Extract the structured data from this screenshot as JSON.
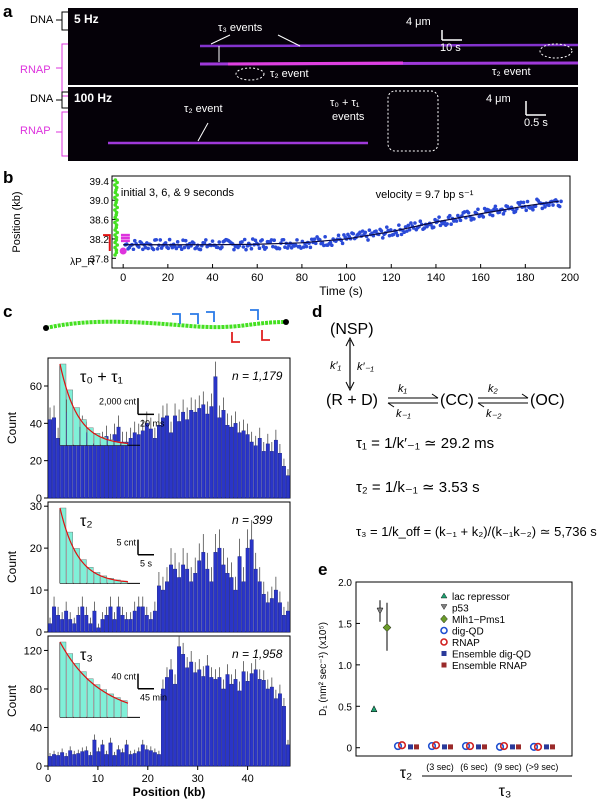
{
  "panels": {
    "a": "a",
    "b": "b",
    "c": "c",
    "d": "d",
    "e": "e"
  },
  "kymo1": {
    "side_top": "DNA",
    "side_bottom": "RNAP",
    "rate": "5 Hz",
    "tau3": "τ₃ events",
    "tau2a": "τ₂ event",
    "tau2b": "τ₂ event",
    "scale_x": "10 s",
    "scale_y": "4 μm"
  },
  "kymo2": {
    "side_top": "DNA",
    "side_bottom": "RNAP",
    "rate": "100 Hz",
    "tau2": "τ₂ event",
    "tau01": "τ₀ + τ₁",
    "tau01b": "events",
    "scale_x": "0.5 s",
    "scale_y": "4 μm"
  },
  "chart_data": [
    {
      "type": "scatter",
      "title": "",
      "xlabel": "Time (s)",
      "ylabel": "Position (kb)",
      "xlim": [
        -5,
        200
      ],
      "ylim": [
        37.6,
        39.5
      ],
      "xticks": [
        0,
        20,
        40,
        60,
        80,
        100,
        120,
        140,
        160,
        180,
        200
      ],
      "yticks": [
        37.8,
        38.2,
        38.6,
        39.0,
        39.4
      ],
      "annotations": [
        "initial 3, 6, & 9 seconds",
        "velocity = 9.7 bp s⁻¹",
        "λP_R"
      ],
      "trend": {
        "x": [
          0,
          40,
          60,
          80,
          100,
          120,
          140,
          160,
          180,
          195
        ],
        "y": [
          38.08,
          38.08,
          38.09,
          38.12,
          38.2,
          38.35,
          38.55,
          38.72,
          38.88,
          38.98
        ]
      }
    },
    {
      "type": "bar",
      "ylabel": "Count",
      "legend_label": "τ₀ + τ₁",
      "n_label": "n = 1,179",
      "ylim": [
        0,
        75
      ],
      "yticks": [
        0,
        20,
        40,
        60
      ],
      "inset": {
        "scale_y": "2,000 cnt",
        "scale_x": "20 ms"
      },
      "values": [
        42,
        43,
        32,
        58,
        46,
        42,
        28,
        38,
        38,
        35,
        30,
        29,
        28,
        30,
        33,
        29,
        34,
        38,
        30,
        30,
        32,
        35,
        34,
        36,
        40,
        37,
        32,
        39,
        43,
        44,
        35,
        44,
        41,
        46,
        42,
        47,
        46,
        48,
        50,
        45,
        49,
        65,
        43,
        47,
        39,
        38,
        40,
        35,
        36,
        34,
        30,
        28,
        32,
        25,
        29,
        25,
        31,
        24,
        17,
        12
      ]
    },
    {
      "type": "bar",
      "ylabel": "Count",
      "legend_label": "τ₂",
      "n_label": "n = 399",
      "ylim": [
        0,
        31
      ],
      "yticks": [
        0,
        10,
        20,
        30
      ],
      "inset": {
        "scale_y": "5 cnt",
        "scale_x": "5 s"
      },
      "values": [
        2,
        6,
        4,
        3,
        5,
        3,
        2,
        4,
        6,
        4,
        2,
        5,
        1,
        3,
        4,
        6,
        3,
        6,
        4,
        3,
        3,
        5,
        6,
        6,
        4,
        3,
        5,
        11,
        10,
        12,
        16,
        15,
        13,
        16,
        15,
        12,
        14,
        17,
        19,
        15,
        12,
        19,
        20,
        16,
        14,
        13,
        10,
        18,
        12,
        20,
        22,
        15,
        12,
        9,
        7,
        8,
        10,
        7,
        4,
        5
      ]
    },
    {
      "type": "bar",
      "ylabel": "Count",
      "xlabel": "Position (kb)",
      "legend_label": "τ₃",
      "n_label": "n = 1,958",
      "ylim": [
        0,
        135
      ],
      "yticks": [
        0,
        40,
        80,
        120
      ],
      "xticks": [
        0,
        10,
        20,
        30,
        40
      ],
      "inset": {
        "scale_y": "40 cnt",
        "scale_x": "45 min"
      },
      "values": [
        10,
        12,
        11,
        14,
        10,
        16,
        12,
        13,
        15,
        16,
        11,
        27,
        15,
        22,
        12,
        24,
        11,
        17,
        14,
        22,
        12,
        13,
        15,
        22,
        17,
        16,
        14,
        12,
        80,
        92,
        100,
        85,
        124,
        116,
        102,
        108,
        97,
        100,
        93,
        104,
        92,
        90,
        92,
        80,
        95,
        85,
        90,
        78,
        98,
        88,
        96,
        100,
        90,
        89,
        80,
        82,
        70,
        75,
        62,
        22
      ]
    },
    {
      "type": "scatter",
      "ylabel": "D₁ (nm² sec⁻¹) (x10⁵)",
      "ylim": [
        -0.1,
        2.0
      ],
      "yticks": [
        0,
        0.5,
        1.0,
        1.5,
        2.0
      ],
      "categories": [
        "lac repressor",
        "p53",
        "Mlh1−Pms1",
        "τ₂",
        "(3 sec)",
        "(6 sec)",
        "(9 sec)",
        "(>9 sec)"
      ],
      "group_label": "τ₃",
      "legend": [
        "lac repressor",
        "p53",
        "Mlh1−Pms1",
        "dig-QD",
        "RNAP",
        "Ensemble dig-QD",
        "Ensemble RNAP"
      ],
      "series": [
        {
          "name": "lac repressor",
          "values": [
            0.47
          ]
        },
        {
          "name": "p53",
          "values": [
            1.65
          ]
        },
        {
          "name": "Mlh1−Pms1",
          "values": [
            1.45
          ]
        },
        {
          "name": "dig-QD",
          "values": [
            0.02,
            0.02,
            0.02,
            0.01,
            0.01
          ]
        },
        {
          "name": "RNAP",
          "values": [
            0.03,
            0.03,
            0.02,
            0.02,
            0.01
          ]
        },
        {
          "name": "Ensemble dig-QD",
          "values": [
            0.01,
            0.01,
            0.01,
            0.01,
            0.01
          ]
        },
        {
          "name": "Ensemble RNAP",
          "values": [
            0.01,
            0.01,
            0.01,
            0.01,
            0.01
          ]
        }
      ],
      "colors": {
        "lac repressor": "#20a070",
        "p53": "#808080",
        "Mlh1−Pms1": "#6a9a2a",
        "dig-QD": "#2050d0",
        "RNAP": "#d02020",
        "Ensemble dig-QD": "#2a3a9a",
        "Ensemble RNAP": "#9a2a2a"
      }
    }
  ],
  "scheme": {
    "nsp": "(NSP)",
    "rd": "(R + D)",
    "cc": "(CC)",
    "oc": "(OC)",
    "k1p": "k′₁",
    "km1p": "k′₋₁",
    "k1": "k₁",
    "km1": "k₋₁",
    "k2": "k₂",
    "km2": "k₋₂",
    "eq1": "τ₁ = 1/k′₋₁ ≃ 29.2 ms",
    "eq2": "τ₂ = 1/k₋₁ ≃ 3.53 s",
    "eq3": "τ₃ = 1/k_off = (k₋₁ + k₂)/(k₋₁k₋₂) ≃ 5,736 s"
  },
  "colors": {
    "bar": "#2a35c8",
    "dot": "#2a4ad8",
    "green": "#44e020",
    "magenta": "#dd33dd",
    "cyan": "#80f0d8"
  }
}
